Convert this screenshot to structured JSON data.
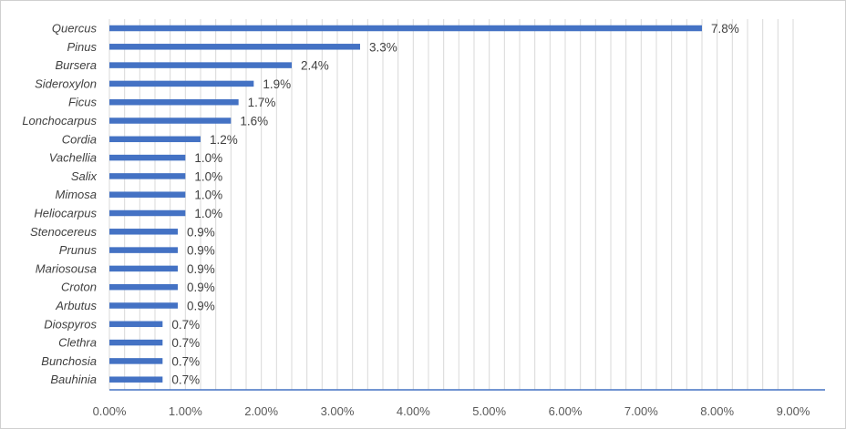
{
  "chart_data": {
    "type": "bar",
    "orientation": "horizontal",
    "title": "",
    "xlabel": "",
    "ylabel": "",
    "categories": [
      "Quercus",
      "Pinus",
      "Bursera",
      "Sideroxylon",
      "Ficus",
      "Lonchocarpus",
      "Cordia",
      "Vachellia",
      "Salix",
      "Mimosa",
      "Heliocarpus",
      "Stenocereus",
      "Prunus",
      "Mariosousa",
      "Croton",
      "Arbutus",
      "Diospyros",
      "Clethra",
      "Bunchosia",
      "Bauhinia"
    ],
    "values": [
      7.8,
      3.3,
      2.4,
      1.9,
      1.7,
      1.6,
      1.2,
      1.0,
      1.0,
      1.0,
      1.0,
      0.9,
      0.9,
      0.9,
      0.9,
      0.9,
      0.7,
      0.7,
      0.7,
      0.7
    ],
    "data_labels": [
      "7.8%",
      "3.3%",
      "2.4%",
      "1.9%",
      "1.7%",
      "1.6%",
      "1.2%",
      "1.0%",
      "1.0%",
      "1.0%",
      "1.0%",
      "0.9%",
      "0.9%",
      "0.9%",
      "0.9%",
      "0.9%",
      "0.7%",
      "0.7%",
      "0.7%",
      "0.7%"
    ],
    "xlim": [
      0,
      9
    ],
    "x_ticks": [
      0,
      1,
      2,
      3,
      4,
      5,
      6,
      7,
      8,
      9
    ],
    "x_tick_labels": [
      "0.00%",
      "1.00%",
      "2.00%",
      "3.00%",
      "4.00%",
      "5.00%",
      "6.00%",
      "7.00%",
      "8.00%",
      "9.00%"
    ],
    "minor_grid_step": 0.2,
    "grid": true,
    "legend": "none",
    "bar_color": "#4472c4",
    "grid_color": "#d9d9d9",
    "axis_color": "#4472c4"
  }
}
